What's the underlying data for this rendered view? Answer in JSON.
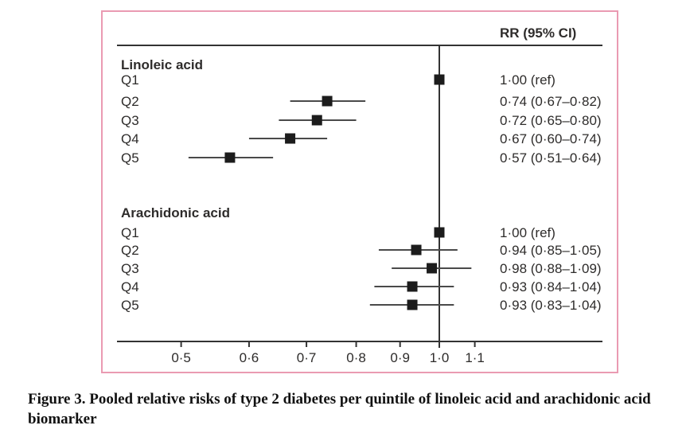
{
  "figure": {
    "caption": "Figure 3. Pooled relative risks of type 2 diabetes per quintile of linoleic acid and arachidonic acid biomarker",
    "border_color": "#ea9bb2"
  },
  "chart_data": {
    "type": "forest",
    "column_header": "RR (95% CI)",
    "x_axis": {
      "scale": "log",
      "ticks": [
        0.5,
        0.6,
        0.7,
        0.8,
        0.9,
        1.0,
        1.1
      ],
      "tick_labels": [
        "0·5",
        "0·6",
        "0·7",
        "0·8",
        "0·9",
        "1·0",
        "1·1"
      ],
      "reference_line": 1.0,
      "xlim": [
        0.44,
        1.18
      ]
    },
    "groups": [
      {
        "label": "Linoleic acid",
        "rows": [
          {
            "label": "Q1",
            "rr": 1.0,
            "lo": null,
            "hi": null,
            "ci_text": "1·00 (ref)"
          },
          {
            "label": "Q2",
            "rr": 0.74,
            "lo": 0.67,
            "hi": 0.82,
            "ci_text": "0·74 (0·67–0·82)"
          },
          {
            "label": "Q3",
            "rr": 0.72,
            "lo": 0.65,
            "hi": 0.8,
            "ci_text": "0·72 (0·65–0·80)"
          },
          {
            "label": "Q4",
            "rr": 0.67,
            "lo": 0.6,
            "hi": 0.74,
            "ci_text": "0·67 (0·60–0·74)"
          },
          {
            "label": "Q5",
            "rr": 0.57,
            "lo": 0.51,
            "hi": 0.64,
            "ci_text": "0·57 (0·51–0·64)"
          }
        ]
      },
      {
        "label": "Arachidonic acid",
        "rows": [
          {
            "label": "Q1",
            "rr": 1.0,
            "lo": null,
            "hi": null,
            "ci_text": "1·00 (ref)"
          },
          {
            "label": "Q2",
            "rr": 0.94,
            "lo": 0.85,
            "hi": 1.05,
            "ci_text": "0·94 (0·85–1·05)"
          },
          {
            "label": "Q3",
            "rr": 0.98,
            "lo": 0.88,
            "hi": 1.09,
            "ci_text": "0·98 (0·88–1·09)"
          },
          {
            "label": "Q4",
            "rr": 0.93,
            "lo": 0.84,
            "hi": 1.04,
            "ci_text": "0·93 (0·84–1·04)"
          },
          {
            "label": "Q5",
            "rr": 0.93,
            "lo": 0.83,
            "hi": 1.04,
            "ci_text": "0·93 (0·83–1·04)"
          }
        ]
      }
    ],
    "colors": {
      "marker": "#1c1c1c",
      "ci_line": "#4a4a4a",
      "axis": "#333333",
      "text": "#2e2c2b"
    }
  }
}
